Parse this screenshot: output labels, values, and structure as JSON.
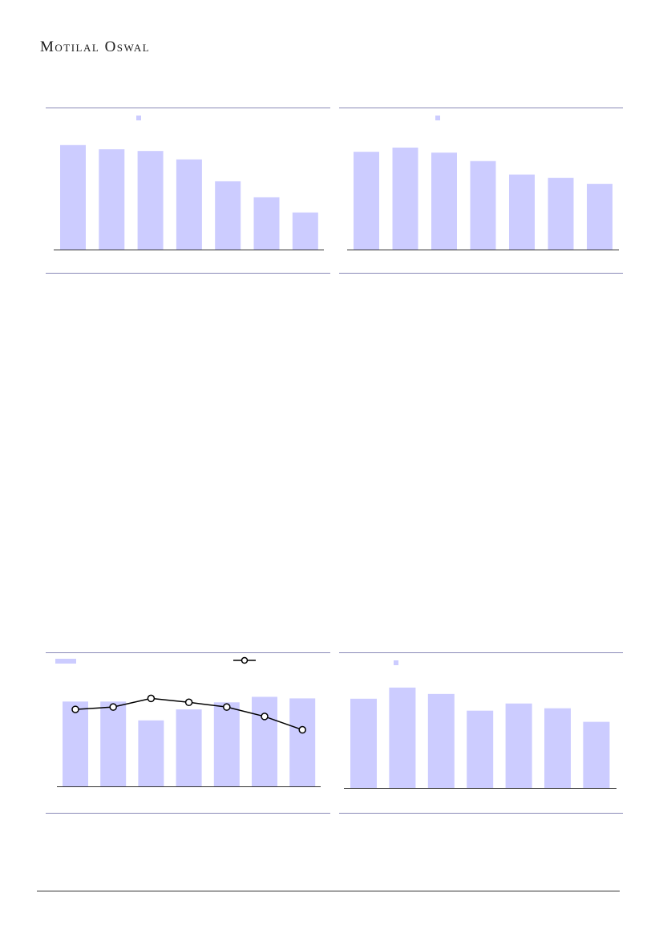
{
  "header": {
    "logo_text": "Motilal Oswal"
  },
  "colors": {
    "bar": "#ccccff",
    "line": "#000000",
    "rule": "#8a8ab8",
    "axis": "#333333"
  },
  "chart_data": [
    {
      "type": "bar",
      "values": [
        62,
        59.5,
        58.5,
        53.5,
        40.5,
        31,
        22
      ],
      "ylim": [
        0,
        70
      ]
    },
    {
      "type": "bar",
      "values": [
        58,
        60.5,
        57.5,
        52.5,
        44.5,
        42.5,
        39
      ],
      "ylim": [
        0,
        70
      ]
    },
    {
      "type": "bar",
      "series": [
        {
          "type": "bar",
          "values": [
            54,
            54,
            42,
            49,
            53.5,
            57,
            56
          ]
        },
        {
          "type": "line",
          "values": [
            49,
            50.5,
            56,
            53.5,
            50.5,
            44.5,
            36
          ]
        }
      ],
      "ylim": [
        0,
        70
      ]
    },
    {
      "type": "bar",
      "values": [
        56,
        63,
        59,
        48.5,
        53,
        50,
        41.5
      ],
      "ylim": [
        0,
        70
      ]
    }
  ]
}
